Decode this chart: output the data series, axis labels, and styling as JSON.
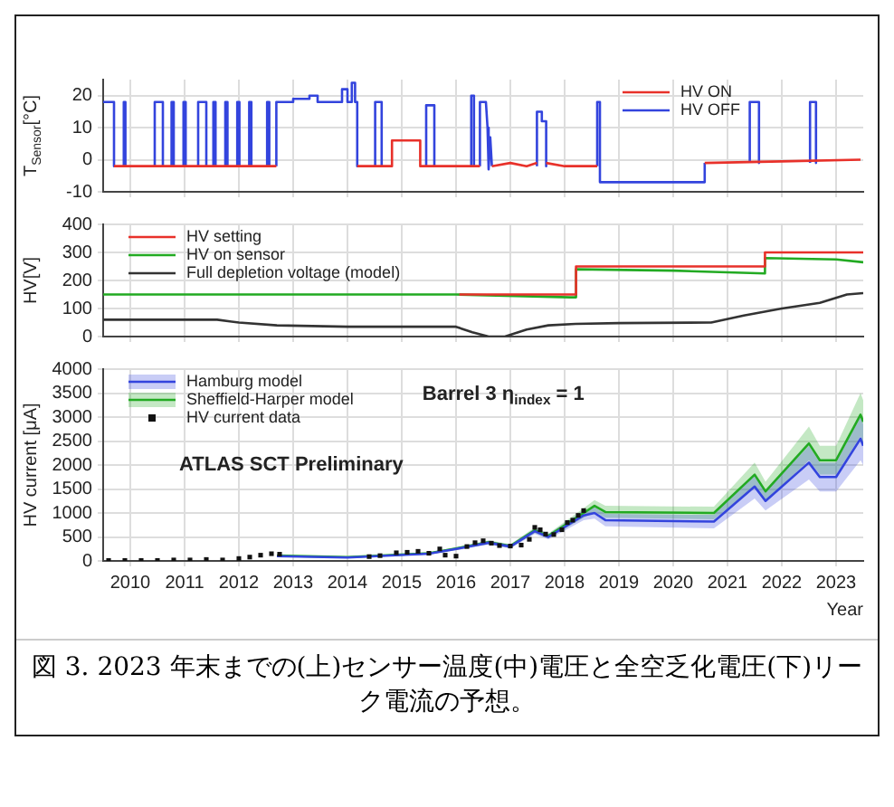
{
  "chart_data": [
    {
      "type": "line",
      "ylabel": "T$_{Sensor}$[°C]",
      "xlim": [
        2009.5,
        2023.5
      ],
      "xticks": [
        2010,
        2011,
        2012,
        2013,
        2014,
        2015,
        2016,
        2017,
        2018,
        2019,
        2020,
        2021,
        2022,
        2023
      ],
      "ylim": [
        -10,
        25
      ],
      "yticks": [
        -10,
        0,
        10,
        20
      ],
      "grid": true,
      "legend": "top right",
      "tick_labels": "y",
      "series": [
        {
          "name": "HV ON",
          "color": "#e8312a",
          "x": [
            2009.7,
            2012.69,
            null,
            2014.18,
            2014.82,
            2014.82,
            2015.34,
            2015.34,
            2016.44,
            null,
            2016.66,
            2017.0,
            2017.3,
            2017.49,
            null,
            2017.66,
            2018.0,
            2018.6,
            null,
            2020.58,
            2022.0,
            2023.45
          ],
          "values": [
            -2,
            -2,
            null,
            -2,
            -2,
            6,
            6,
            -2,
            -2,
            null,
            -2,
            -1,
            -2,
            -1,
            null,
            -1,
            -2,
            -2,
            null,
            -1,
            -0.5,
            0
          ]
        },
        {
          "name": "HV OFF",
          "color": "#3344dd",
          "x": [
            2009.5,
            2009.7,
            2009.7,
            null,
            2009.88,
            2009.88,
            2009.91,
            2009.91,
            null,
            2010.45,
            2010.45,
            2010.6,
            2010.6,
            null,
            2010.76,
            2010.76,
            2010.8,
            2010.8,
            null,
            2010.98,
            2010.98,
            2011.02,
            2011.02,
            null,
            2011.25,
            2011.25,
            2011.4,
            2011.4,
            null,
            2011.53,
            2011.53,
            2011.57,
            2011.57,
            null,
            2011.75,
            2011.75,
            2011.79,
            2011.79,
            null,
            2011.97,
            2011.97,
            2012.01,
            2012.01,
            null,
            2012.19,
            2012.19,
            2012.23,
            2012.23,
            null,
            2012.52,
            2012.52,
            2012.56,
            2012.56,
            null,
            2012.69,
            2012.69,
            2013.0,
            2013.0,
            2013.3,
            2013.3,
            2013.45,
            2013.45,
            2013.9,
            2013.9,
            2014.0,
            2014.0,
            2014.08,
            2014.08,
            2014.14,
            2014.14,
            2014.18,
            2014.18,
            null,
            2014.51,
            2014.51,
            2014.63,
            2014.63,
            null,
            2015.45,
            2015.45,
            2015.6,
            2015.6,
            null,
            2016.28,
            2016.28,
            2016.33,
            2016.33,
            null,
            2016.44,
            2016.44,
            2016.55,
            2016.58,
            2016.6,
            2016.63,
            2016.66,
            null,
            2017.49,
            2017.49,
            2017.58,
            2017.58,
            2017.66,
            2017.66,
            null,
            2018.6,
            2018.6,
            2018.65,
            2018.65,
            2020.58,
            2020.58,
            null,
            2021.41,
            2021.41,
            2021.58,
            2021.58,
            null,
            2022.52,
            2022.52,
            2022.63,
            2022.63
          ],
          "values": [
            18,
            18,
            -2,
            null,
            -2,
            18,
            18,
            -2,
            null,
            -2,
            18,
            18,
            -2,
            null,
            -2,
            18,
            18,
            -2,
            null,
            -2,
            18,
            18,
            -2,
            null,
            -2,
            18,
            18,
            -2,
            null,
            -2,
            18,
            18,
            -2,
            null,
            -2,
            18,
            18,
            -2,
            null,
            -2,
            18,
            18,
            -2,
            null,
            -2,
            18,
            18,
            -2,
            null,
            -2,
            18,
            18,
            -2,
            null,
            -2,
            18,
            18,
            19,
            19,
            20,
            20,
            18,
            18,
            22,
            22,
            18,
            18,
            24,
            24,
            18,
            18,
            -2,
            null,
            -2,
            18,
            18,
            -2,
            null,
            -2,
            17,
            17,
            -2,
            null,
            -2,
            20,
            20,
            -2,
            null,
            -2,
            18,
            18,
            10,
            -3,
            7,
            -2,
            null,
            -2,
            15,
            15,
            12,
            12,
            -2,
            null,
            -2,
            18,
            18,
            -7,
            -7,
            -1,
            null,
            -1,
            18,
            18,
            -1,
            null,
            -1,
            18,
            18,
            -1
          ]
        }
      ]
    },
    {
      "type": "line",
      "ylabel": "HV[V]",
      "xlim": [
        2009.5,
        2023.5
      ],
      "xticks": [
        2010,
        2011,
        2012,
        2013,
        2014,
        2015,
        2016,
        2017,
        2018,
        2019,
        2020,
        2021,
        2022,
        2023
      ],
      "ylim": [
        0,
        400
      ],
      "yticks": [
        0,
        100,
        200,
        300,
        400
      ],
      "grid": true,
      "legend": "top left",
      "tick_labels": "y",
      "series": [
        {
          "name": "HV setting",
          "color": "#e8312a",
          "x": [
            2016.06,
            2018.21,
            2018.21,
            2021.69,
            2021.69,
            2023.5
          ],
          "values": [
            150,
            150,
            250,
            250,
            300,
            300
          ]
        },
        {
          "name": "HV on sensor",
          "color": "#22aa22",
          "x": [
            2009.5,
            2016.0,
            2018.1,
            2018.21,
            2018.21,
            2020.0,
            2021.69,
            2021.69,
            2023.0,
            2023.5
          ],
          "values": [
            150,
            150,
            140,
            140,
            240,
            235,
            225,
            280,
            275,
            265
          ]
        },
        {
          "name": "Full depletion voltage (model)",
          "color": "#333333",
          "x": [
            2009.5,
            2011.6,
            2012.0,
            2012.7,
            2014.0,
            2016.0,
            2016.3,
            2016.6,
            2016.9,
            2017.3,
            2017.7,
            2018.2,
            2019.0,
            2020.7,
            2021.3,
            2022.0,
            2022.7,
            2023.2,
            2023.5
          ],
          "values": [
            60,
            60,
            50,
            40,
            35,
            35,
            15,
            0,
            0,
            25,
            40,
            45,
            48,
            50,
            75,
            100,
            120,
            150,
            155
          ]
        }
      ]
    },
    {
      "type": "line",
      "xlabel": "Year",
      "ylabel": "HV current [μA]",
      "xlim": [
        2009.5,
        2023.5
      ],
      "xticks": [
        2010,
        2011,
        2012,
        2013,
        2014,
        2015,
        2016,
        2017,
        2018,
        2019,
        2020,
        2021,
        2022,
        2023
      ],
      "ylim": [
        0,
        4000
      ],
      "yticks": [
        0,
        500,
        1000,
        1500,
        2000,
        2500,
        3000,
        3500,
        4000
      ],
      "grid": true,
      "legend": "top left",
      "annotations": [
        "Barrel 3 η$_{index}$ = 1",
        "ATLAS SCT Preliminary",
        "図 3. 2023 年末までの(上)センサー温度(中)電圧と全空乏化電圧(下)リーク電流の予想。"
      ],
      "series": [
        {
          "name": "Hamburg model",
          "color": "#3344dd",
          "x": [
            2012.7,
            2014.0,
            2015.5,
            2016.0,
            2016.6,
            2017.0,
            2017.45,
            2017.7,
            2018.35,
            2018.55,
            2018.75,
            2020.75,
            2021.5,
            2021.7,
            2022.5,
            2022.7,
            2023.0,
            2023.45,
            2023.5
          ],
          "values": [
            100,
            70,
            150,
            250,
            380,
            300,
            620,
            500,
            950,
            1000,
            850,
            820,
            1550,
            1250,
            2050,
            1750,
            1750,
            2550,
            2400
          ],
          "lower": [
            90,
            60,
            130,
            220,
            340,
            260,
            560,
            450,
            850,
            880,
            720,
            680,
            1300,
            1050,
            1700,
            1450,
            1450,
            2100,
            2000
          ],
          "upper": [
            110,
            80,
            170,
            280,
            420,
            340,
            680,
            560,
            1050,
            1120,
            980,
            960,
            1800,
            1450,
            2400,
            2050,
            2050,
            3000,
            2850
          ]
        },
        {
          "name": "Sheffield-Harper model",
          "color": "#22aa22",
          "x": [
            2012.7,
            2014.0,
            2015.5,
            2016.0,
            2016.6,
            2017.0,
            2017.45,
            2017.7,
            2018.35,
            2018.55,
            2018.75,
            2020.75,
            2021.5,
            2021.7,
            2022.5,
            2022.7,
            2023.0,
            2023.45,
            2023.5
          ],
          "values": [
            110,
            80,
            160,
            260,
            390,
            310,
            640,
            520,
            1000,
            1150,
            1020,
            1000,
            1800,
            1450,
            2450,
            2100,
            2100,
            3050,
            2900
          ],
          "lower": [
            95,
            65,
            140,
            230,
            350,
            270,
            580,
            470,
            900,
            1030,
            900,
            870,
            1550,
            1250,
            2100,
            1800,
            1800,
            2600,
            2450
          ],
          "upper": [
            115,
            85,
            180,
            290,
            430,
            350,
            700,
            570,
            1100,
            1270,
            1150,
            1130,
            2050,
            1650,
            2800,
            2400,
            2400,
            3500,
            3350
          ]
        },
        {
          "name": "HV current data",
          "type": "scatter",
          "marker": "square",
          "color": "#111111",
          "x": [
            2009.6,
            2009.9,
            2010.2,
            2010.5,
            2010.8,
            2011.1,
            2011.4,
            2011.7,
            2012.0,
            2012.2,
            2012.4,
            2012.6,
            2012.75,
            2014.4,
            2014.6,
            2014.9,
            2015.1,
            2015.3,
            2015.5,
            2015.7,
            2015.8,
            2016.0,
            2016.2,
            2016.35,
            2016.5,
            2016.65,
            2016.8,
            2017.0,
            2017.2,
            2017.35,
            2017.45,
            2017.55,
            2017.65,
            2017.8,
            2017.95,
            2018.05,
            2018.15,
            2018.25,
            2018.35
          ],
          "values": [
            10,
            10,
            10,
            10,
            20,
            20,
            30,
            20,
            50,
            80,
            120,
            150,
            140,
            90,
            110,
            170,
            180,
            200,
            160,
            250,
            120,
            100,
            300,
            380,
            420,
            370,
            320,
            310,
            330,
            450,
            700,
            650,
            560,
            550,
            650,
            800,
            850,
            950,
            1050
          ]
        }
      ]
    }
  ]
}
